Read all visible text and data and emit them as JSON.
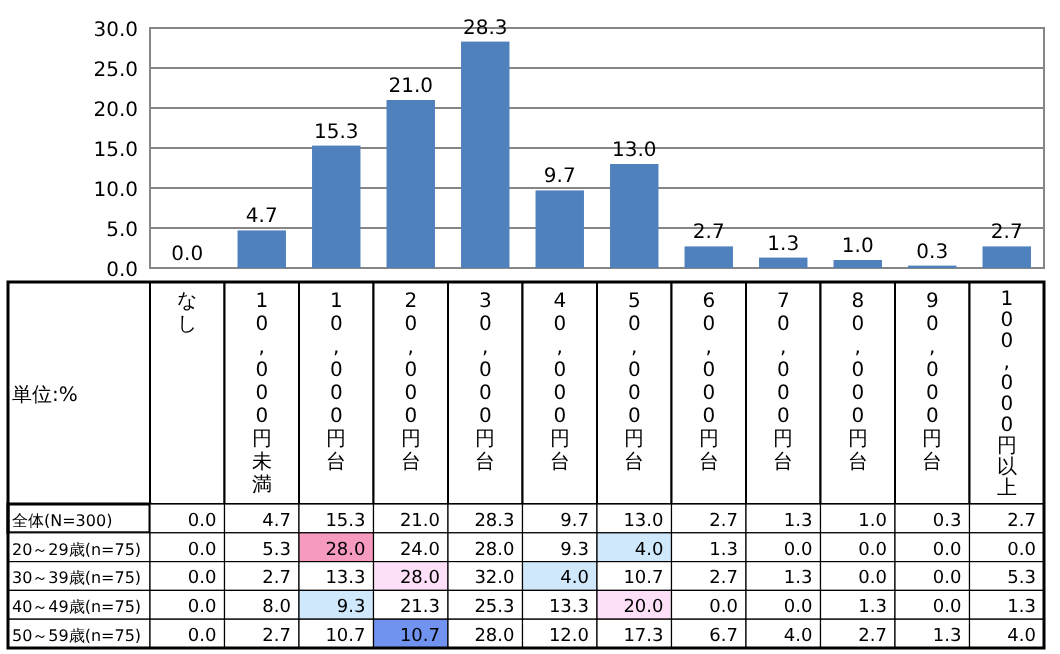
{
  "chart_data": [
    {
      "type": "bar",
      "categories": [
        null,
        null,
        null,
        null,
        null,
        null,
        null,
        null,
        null,
        null,
        null,
        null
      ],
      "values": [
        0,
        4.7,
        15.3,
        21.0,
        28.3,
        9.7,
        13.0,
        2.7,
        1.3,
        1.0,
        0.3,
        2.7
      ],
      "value_labels": [
        "0.0",
        "4.7",
        "15.3",
        "21.0",
        "28.3",
        "9.7",
        "13.0",
        "2.7",
        "1.3",
        "1.0",
        "0.3",
        "2.7"
      ],
      "color": "#4f81bd",
      "ylim": [
        0,
        30
      ],
      "yticks": [
        {
          "value": 0,
          "label": "0.0"
        },
        {
          "value": 5,
          "label": "5.0"
        },
        {
          "value": 10,
          "label": "10.0"
        },
        {
          "value": 15,
          "label": "15.0"
        },
        {
          "value": 20,
          "label": "20.0"
        },
        {
          "value": 25,
          "label": "25.0"
        },
        {
          "value": 30,
          "label": "30.0"
        }
      ],
      "grid": "y"
    },
    {
      "type": "heatmap",
      "categories": [
        "なし",
        "10,000円未満",
        "10,000円台",
        "20,000円台",
        "30,000円台",
        "40,000円台",
        "50,000円台",
        "60,000円台",
        "70,000円台",
        "80,000円台",
        "90,000円台",
        "100,000円以上"
      ],
      "y_categories": [
        "全体(N=300)",
        "20～29歳(n=75)",
        "30～39歳(n=75)",
        "40～49歳(n=75)",
        "50～59歳(n=75)"
      ],
      "cells": [
        [
          0,
          4.7,
          15.3,
          21.0,
          28.3,
          9.7,
          13.0,
          2.7,
          1.3,
          1.0,
          0.3,
          2.7
        ],
        [
          0,
          5.3,
          28.0,
          24.0,
          28.0,
          9.3,
          4.0,
          1.3,
          0,
          0,
          0,
          0
        ],
        [
          0,
          2.7,
          13.3,
          28.0,
          32.0,
          4.0,
          10.7,
          2.7,
          1.3,
          0,
          0,
          5.3
        ],
        [
          0,
          8.0,
          9.3,
          21.3,
          25.3,
          13.3,
          20.0,
          0,
          0,
          1.3,
          0,
          1.3
        ],
        [
          0,
          2.7,
          10.7,
          10.7,
          28.0,
          12.0,
          17.3,
          6.7,
          4.0,
          2.7,
          1.3,
          4.0
        ]
      ],
      "cell_labels": [
        [
          "0.0",
          "4.7",
          "15.3",
          "21.0",
          "28.3",
          "9.7",
          "13.0",
          "2.7",
          "1.3",
          "1.0",
          "0.3",
          "2.7"
        ],
        [
          "0.0",
          "5.3",
          "28.0",
          "24.0",
          "28.0",
          "9.3",
          "4.0",
          "1.3",
          "0.0",
          "0.0",
          "0.0",
          "0.0"
        ],
        [
          "0.0",
          "2.7",
          "13.3",
          "28.0",
          "32.0",
          "4.0",
          "10.7",
          "2.7",
          "1.3",
          "0.0",
          "0.0",
          "5.3"
        ],
        [
          "0.0",
          "8.0",
          "9.3",
          "21.3",
          "25.3",
          "13.3",
          "20.0",
          "0.0",
          "0.0",
          "1.3",
          "0.0",
          "1.3"
        ],
        [
          "0.0",
          "2.7",
          "10.7",
          "10.7",
          "28.0",
          "12.0",
          "17.3",
          "6.7",
          "4.0",
          "2.7",
          "1.3",
          "4.0"
        ]
      ],
      "annotations": [
        "単位:%"
      ]
    }
  ]
}
